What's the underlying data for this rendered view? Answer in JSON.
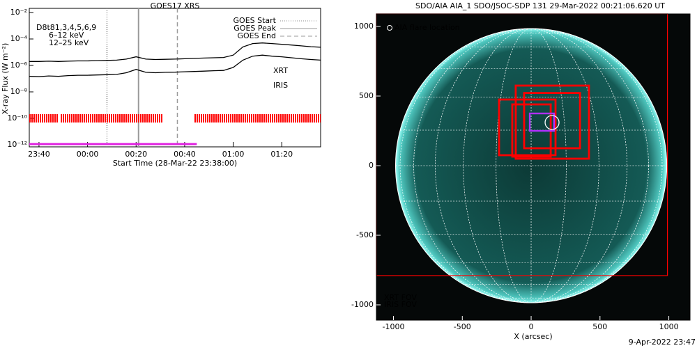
{
  "chart_data": [
    {
      "type": "line",
      "title": "GOES17 XRS",
      "y_label": "X-ray Flux (W m⁻²)",
      "x_label": "Start Time (28-Mar-22 23:38:00)",
      "log_y": true,
      "ylim": [
        1e-12,
        0.01
      ],
      "yticks": [
        {
          "value": 1e-12,
          "label": "10⁻¹²"
        },
        {
          "value": 1e-10,
          "label": "10⁻¹⁰"
        },
        {
          "value": 1e-08,
          "label": "10⁻⁸"
        },
        {
          "value": 1e-06,
          "label": "10⁻⁶"
        },
        {
          "value": 0.0001,
          "label": "10⁻⁴"
        },
        {
          "value": 0.01,
          "label": "10⁻²"
        }
      ],
      "xlim": [
        "23:36",
        "01:36"
      ],
      "xticks": [
        "23:40",
        "00:00",
        "00:20",
        "00:40",
        "01:00",
        "01:20"
      ],
      "x": [
        "23:36",
        "23:40",
        "23:44",
        "23:48",
        "23:52",
        "23:56",
        "00:00",
        "00:04",
        "00:08",
        "00:12",
        "00:16",
        "00:20",
        "00:24",
        "00:28",
        "00:32",
        "00:36",
        "00:40",
        "00:44",
        "00:48",
        "00:52",
        "00:56",
        "01:00",
        "01:04",
        "01:08",
        "01:12",
        "01:16",
        "01:20",
        "01:24",
        "01:28",
        "01:32",
        "01:36"
      ],
      "series": [
        {
          "color": "#000000",
          "values": [
            2e-06,
            2e-06,
            2.1e-06,
            2e-06,
            2.1e-06,
            2.2e-06,
            2.2e-06,
            2.3e-06,
            2.4e-06,
            2.5e-06,
            3e-06,
            4.5e-06,
            3e-06,
            2.8e-06,
            2.9e-06,
            3e-06,
            3.2e-06,
            3.4e-06,
            3.6e-06,
            3.8e-06,
            4e-06,
            6e-06,
            2.5e-05,
            4.5e-05,
            5e-05,
            4.5e-05,
            4e-05,
            3.5e-05,
            3e-05,
            2.6e-05,
            2.4e-05
          ]
        },
        {
          "color": "#000000",
          "values": [
            1.5e-07,
            1.4e-07,
            1.6e-07,
            1.5e-07,
            1.7e-07,
            1.8e-07,
            1.8e-07,
            1.9e-07,
            2e-07,
            2.1e-07,
            2.8e-07,
            5e-07,
            3e-07,
            2.8e-07,
            3e-07,
            3.1e-07,
            3.3e-07,
            3.5e-07,
            3.7e-07,
            4e-07,
            4.2e-07,
            7e-07,
            2.5e-06,
            5e-06,
            6e-06,
            5e-06,
            4.5e-06,
            3.8e-06,
            3.2e-06,
            2.8e-06,
            2.5e-06
          ]
        }
      ],
      "goes_lines": [
        {
          "name": "GOES Start",
          "time": "00:08",
          "style": "dotted"
        },
        {
          "name": "GOES Peak",
          "time": "00:21",
          "style": "solid"
        },
        {
          "name": "GOES End",
          "time": "00:37",
          "style": "dashed"
        }
      ],
      "detectors": "D8t81,3,4,5,6,9",
      "channel_labels": [
        {
          "text": "6–12 keV",
          "color": "#e020e0"
        },
        {
          "text": "12–25 keV",
          "color": "#00c000"
        }
      ],
      "xrt": {
        "label": "XRT",
        "color": "#ff0000",
        "level": 1e-10,
        "intervals": [
          [
            "23:36",
            "23:48"
          ],
          [
            "23:49",
            "00:31"
          ],
          [
            "00:44",
            "01:36"
          ]
        ]
      },
      "iris": {
        "label": "IRIS",
        "color": "#e020e0",
        "level": 1e-12,
        "intervals": [
          [
            "23:36",
            "00:45"
          ]
        ]
      }
    },
    {
      "type": "image",
      "title": "SDO/AIA AIA_1 SDO/JSOC-SDP 131 29-Mar-2022 00:21:06.620 UT",
      "x_label": "X (arcsec)",
      "xlim": [
        -1124,
        1154
      ],
      "ylim": [
        -1110,
        1090
      ],
      "xticks": [
        -1000,
        -500,
        0,
        500,
        1000
      ],
      "yticks": [
        -1000,
        -500,
        0,
        500,
        1000
      ],
      "disk_radius": 985,
      "xrt_fov": {
        "label": "XRT FOV",
        "color": "#ff0000",
        "boxes": [
          [
            -1124,
            -790,
            990,
            1090
          ],
          [
            -112,
            50,
            420,
            575
          ],
          [
            -51,
            125,
            355,
            522
          ],
          [
            -233,
            75,
            177,
            475
          ],
          [
            -137,
            65,
            142,
            440
          ]
        ]
      },
      "iris_fov": {
        "label": "IRIS FOV",
        "color": "#b030ff",
        "boxes": [
          [
            -10,
            250,
            167,
            375
          ]
        ]
      },
      "flare_location": {
        "label": "AIA flare location",
        "x": 152,
        "y": 310
      },
      "footer": "9-Apr-2022 23:47"
    }
  ]
}
